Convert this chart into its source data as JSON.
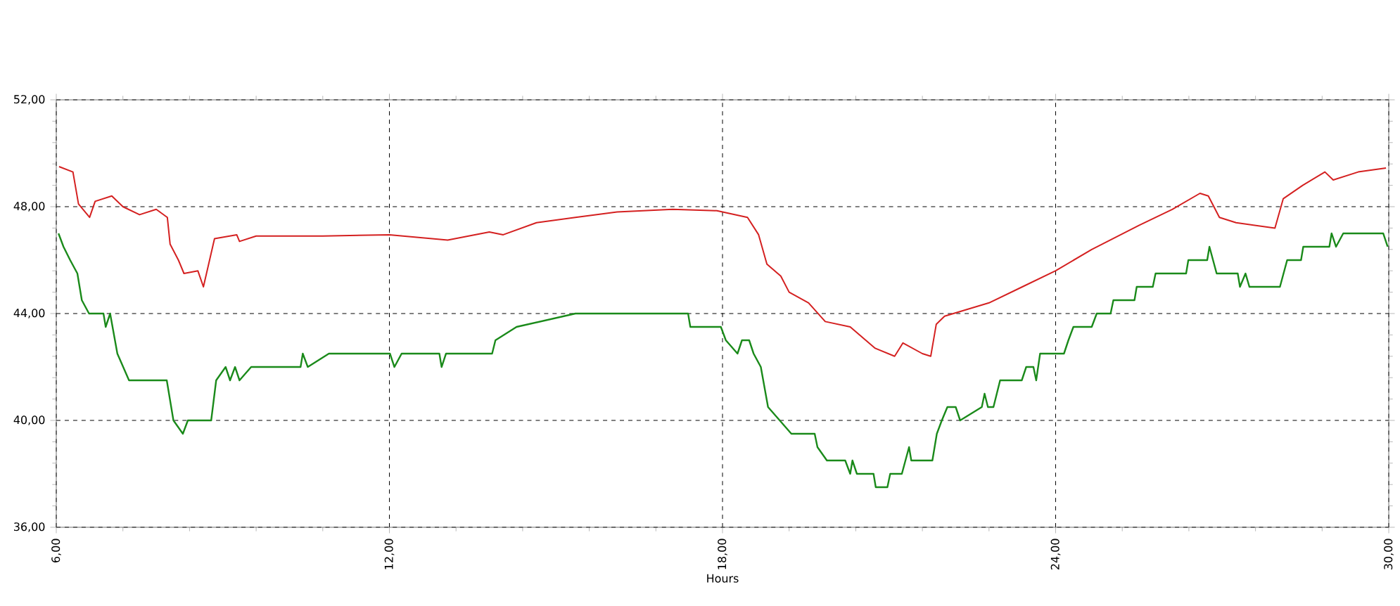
{
  "chart_data": {
    "type": "line",
    "xlabel": "Hours",
    "xlim": [
      6,
      30
    ],
    "xticks": [
      {
        "value": 6,
        "label": "6,00"
      },
      {
        "value": 12,
        "label": "12,00"
      },
      {
        "value": 18,
        "label": "18,00"
      },
      {
        "value": 24,
        "label": "24,00"
      },
      {
        "value": 30,
        "label": "30,00"
      }
    ],
    "ylim": [
      36,
      52
    ],
    "yticks": [
      {
        "value": 36,
        "label": "36,00"
      },
      {
        "value": 40,
        "label": "40,00"
      },
      {
        "value": 44,
        "label": "44,00"
      },
      {
        "value": 48,
        "label": "48,00"
      },
      {
        "value": 52,
        "label": "52,00"
      }
    ],
    "grid": true,
    "legend": false,
    "marker": "none",
    "line_style": "solid",
    "series": [
      {
        "color": "#d42020",
        "x": [
          6.05,
          6.3,
          6.4,
          6.6,
          6.7,
          7.0,
          7.2,
          7.5,
          7.8,
          8.0,
          8.05,
          8.2,
          8.3,
          8.55,
          8.65,
          8.85,
          9.25,
          9.3,
          9.6,
          10.8,
          12.0,
          13.05,
          13.8,
          14.05,
          14.65,
          15.35,
          16.1,
          17.1,
          17.9,
          18.45,
          18.65,
          18.8,
          19.05,
          19.2,
          19.55,
          19.85,
          20.3,
          20.75,
          21.1,
          21.25,
          21.6,
          21.75,
          21.85,
          22.0,
          22.8,
          23.4,
          24.0,
          24.65,
          25.5,
          26.1,
          26.6,
          26.75,
          26.95,
          27.25,
          27.95,
          28.1,
          28.45,
          28.85,
          29.0,
          29.45,
          29.95
        ],
        "values": [
          49.5,
          49.3,
          48.1,
          47.6,
          48.2,
          48.4,
          48.0,
          47.7,
          47.9,
          47.6,
          46.6,
          46.0,
          45.5,
          45.6,
          45.0,
          46.8,
          46.95,
          46.7,
          46.9,
          46.9,
          46.95,
          46.75,
          47.05,
          46.95,
          47.4,
          47.6,
          47.8,
          47.9,
          47.85,
          47.6,
          46.95,
          45.85,
          45.4,
          44.8,
          44.4,
          43.7,
          43.5,
          42.7,
          42.4,
          42.9,
          42.5,
          42.4,
          43.6,
          43.9,
          44.4,
          45.0,
          45.6,
          46.4,
          47.3,
          47.9,
          48.5,
          48.4,
          47.6,
          47.4,
          47.2,
          48.3,
          48.8,
          49.3,
          49.0,
          49.3,
          49.45
        ]
      },
      {
        "color": "#1a8a1a",
        "x": [
          6.04,
          6.13,
          6.25,
          6.38,
          6.46,
          6.59,
          6.85,
          6.89,
          6.97,
          7.1,
          7.31,
          7.99,
          8.11,
          8.28,
          8.37,
          8.79,
          8.88,
          9.05,
          9.13,
          9.22,
          9.3,
          9.51,
          10.4,
          10.44,
          10.53,
          10.91,
          12.01,
          12.09,
          12.22,
          12.9,
          12.94,
          13.02,
          13.85,
          13.91,
          14.29,
          15.35,
          17.38,
          17.42,
          17.97,
          18.06,
          18.27,
          18.35,
          18.48,
          18.56,
          18.69,
          18.82,
          19.03,
          19.24,
          19.66,
          19.71,
          19.88,
          20.21,
          20.3,
          20.34,
          20.42,
          20.72,
          20.76,
          20.97,
          21.02,
          21.23,
          21.36,
          21.4,
          21.78,
          21.86,
          21.95,
          22.05,
          22.2,
          22.28,
          22.67,
          22.72,
          22.78,
          22.88,
          23.0,
          23.39,
          23.47,
          23.6,
          23.65,
          23.72,
          24.15,
          24.23,
          24.32,
          24.65,
          24.74,
          24.99,
          25.04,
          25.42,
          25.46,
          25.75,
          25.8,
          26.35,
          26.39,
          26.73,
          26.77,
          26.9,
          27.28,
          27.32,
          27.42,
          27.49,
          28.04,
          28.17,
          28.42,
          28.46,
          28.93,
          28.97,
          29.05,
          29.18,
          29.9,
          29.98
        ],
        "values": [
          47.0,
          46.5,
          46.0,
          45.5,
          44.5,
          44.0,
          44.0,
          43.5,
          44.0,
          42.5,
          41.5,
          41.5,
          40.0,
          39.5,
          40.0,
          40.0,
          41.5,
          42.0,
          41.5,
          42.0,
          41.5,
          42.0,
          42.0,
          42.5,
          42.0,
          42.5,
          42.5,
          42.0,
          42.5,
          42.5,
          42.0,
          42.5,
          42.5,
          43.0,
          43.5,
          44.0,
          44.0,
          43.5,
          43.5,
          43.0,
          42.5,
          43.0,
          43.0,
          42.5,
          42.0,
          40.5,
          40.0,
          39.5,
          39.5,
          39.0,
          38.5,
          38.5,
          38.0,
          38.5,
          38.0,
          38.0,
          37.5,
          37.5,
          38.0,
          38.0,
          39.0,
          38.5,
          38.5,
          39.5,
          40.0,
          40.5,
          40.5,
          40.0,
          40.5,
          41.0,
          40.5,
          40.5,
          41.5,
          41.5,
          42.0,
          42.0,
          41.5,
          42.5,
          42.5,
          43.0,
          43.5,
          43.5,
          44.0,
          44.0,
          44.5,
          44.5,
          45.0,
          45.0,
          45.5,
          45.5,
          46.0,
          46.0,
          46.5,
          45.5,
          45.5,
          45.0,
          45.5,
          45.0,
          45.0,
          46.0,
          46.0,
          46.5,
          46.5,
          47.0,
          46.5,
          47.0,
          47.0,
          46.5
        ]
      }
    ]
  }
}
